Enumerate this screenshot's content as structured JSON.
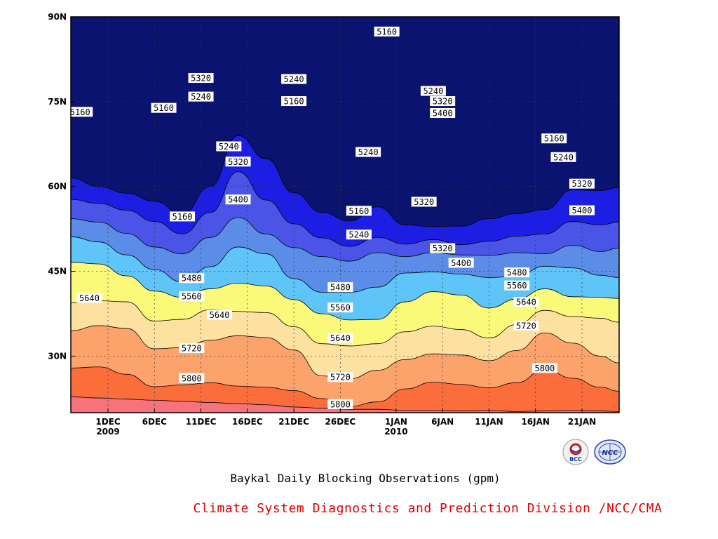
{
  "title": "Baykal Daily Blocking Observations (gpm)",
  "credit": "Climate System Diagnostics and Prediction Division /NCC/CMA",
  "logos": {
    "left_icon": "bcc-logo",
    "left_text": "BCC",
    "right_icon": "ncc-logo",
    "right_text": "NCC"
  },
  "chart_data": {
    "type": "heatmap",
    "xaxis": {
      "ticks": [
        {
          "day": 4,
          "label": "1DEC",
          "sub": "2009"
        },
        {
          "day": 9,
          "label": "6DEC",
          "sub": ""
        },
        {
          "day": 14,
          "label": "11DEC",
          "sub": ""
        },
        {
          "day": 19,
          "label": "16DEC",
          "sub": ""
        },
        {
          "day": 24,
          "label": "21DEC",
          "sub": ""
        },
        {
          "day": 29,
          "label": "26DEC",
          "sub": ""
        },
        {
          "day": 35,
          "label": "1JAN",
          "sub": "2010"
        },
        {
          "day": 40,
          "label": "6JAN",
          "sub": ""
        },
        {
          "day": 45,
          "label": "11JAN",
          "sub": ""
        },
        {
          "day": 50,
          "label": "16JAN",
          "sub": ""
        },
        {
          "day": 55,
          "label": "21JAN",
          "sub": ""
        }
      ],
      "range": [
        0,
        59
      ]
    },
    "yaxis": {
      "ticks": [
        {
          "lat": 30,
          "label": "30N"
        },
        {
          "lat": 45,
          "label": "45N"
        },
        {
          "lat": 60,
          "label": "60N"
        },
        {
          "lat": 75,
          "label": "75N"
        },
        {
          "lat": 90,
          "label": "90N"
        }
      ],
      "range": [
        20,
        90
      ]
    },
    "levels": [
      5160,
      5240,
      5320,
      5400,
      5480,
      5560,
      5640,
      5720,
      5800
    ],
    "colors": [
      "#0b1370",
      "#1c1ee3",
      "#4a55e8",
      "#5a8ce8",
      "#5fc4f7",
      "#fbf97a",
      "#fde1a0",
      "#fca36c",
      "#fb6e3c",
      "#f7727a",
      "#e8142a"
    ],
    "grid": true,
    "contour_labels": [
      {
        "day": 1,
        "lat": 73.2,
        "value": 5160
      },
      {
        "day": 10,
        "lat": 73.9,
        "value": 5160
      },
      {
        "day": 14,
        "lat": 79.2,
        "value": 5320
      },
      {
        "day": 14,
        "lat": 75.9,
        "value": 5240
      },
      {
        "day": 17,
        "lat": 67.1,
        "value": 5240
      },
      {
        "day": 18,
        "lat": 64.4,
        "value": 5320
      },
      {
        "day": 18,
        "lat": 57.7,
        "value": 5400
      },
      {
        "day": 12,
        "lat": 54.7,
        "value": 5160
      },
      {
        "day": 24,
        "lat": 79.0,
        "value": 5240
      },
      {
        "day": 24,
        "lat": 75.1,
        "value": 5160
      },
      {
        "day": 34,
        "lat": 87.4,
        "value": 5160
      },
      {
        "day": 32,
        "lat": 66.1,
        "value": 5240
      },
      {
        "day": 31,
        "lat": 55.7,
        "value": 5160
      },
      {
        "day": 31,
        "lat": 51.5,
        "value": 5240
      },
      {
        "day": 39,
        "lat": 76.9,
        "value": 5240
      },
      {
        "day": 40,
        "lat": 75.1,
        "value": 5320
      },
      {
        "day": 40,
        "lat": 73.0,
        "value": 5400
      },
      {
        "day": 38,
        "lat": 57.3,
        "value": 5320
      },
      {
        "day": 40,
        "lat": 49.1,
        "value": 5320
      },
      {
        "day": 42,
        "lat": 46.5,
        "value": 5400
      },
      {
        "day": 52,
        "lat": 68.5,
        "value": 5160
      },
      {
        "day": 53,
        "lat": 65.2,
        "value": 5240
      },
      {
        "day": 55,
        "lat": 60.5,
        "value": 5320
      },
      {
        "day": 55,
        "lat": 55.8,
        "value": 5400
      },
      {
        "day": 13,
        "lat": 43.8,
        "value": 5480
      },
      {
        "day": 13,
        "lat": 40.6,
        "value": 5560
      },
      {
        "day": 2,
        "lat": 40.3,
        "value": 5640
      },
      {
        "day": 16,
        "lat": 37.3,
        "value": 5640
      },
      {
        "day": 13,
        "lat": 31.4,
        "value": 5720
      },
      {
        "day": 13,
        "lat": 26.1,
        "value": 5800
      },
      {
        "day": 29,
        "lat": 42.2,
        "value": 5480
      },
      {
        "day": 29,
        "lat": 38.6,
        "value": 5560
      },
      {
        "day": 29,
        "lat": 33.2,
        "value": 5640
      },
      {
        "day": 29,
        "lat": 26.3,
        "value": 5720
      },
      {
        "day": 29,
        "lat": 21.5,
        "value": 5800
      },
      {
        "day": 48,
        "lat": 44.8,
        "value": 5480
      },
      {
        "day": 48,
        "lat": 42.5,
        "value": 5560
      },
      {
        "day": 49,
        "lat": 39.6,
        "value": 5640
      },
      {
        "day": 49,
        "lat": 35.4,
        "value": 5720
      },
      {
        "day": 51,
        "lat": 27.9,
        "value": 5800
      }
    ],
    "fields": {
      "sample_days": [
        0,
        3,
        6,
        9,
        12,
        15,
        18,
        21,
        24,
        27,
        30,
        33,
        36,
        39,
        42,
        45,
        48,
        51,
        54,
        57,
        59
      ],
      "boundaries": [
        {
          "level": 5800,
          "lat": [
            22.8,
            22.6,
            22.4,
            22.2,
            22.0,
            21.8,
            21.6,
            21.4,
            21.0,
            20.8,
            20.6,
            20.6,
            20.4,
            20.4,
            20.3,
            20.4,
            20.2,
            20.3,
            20.4,
            20.3,
            20.2
          ]
        },
        {
          "level": 5720,
          "lat": [
            27.9,
            28.1,
            26.8,
            24.6,
            24.9,
            25.3,
            24.7,
            24.5,
            23.9,
            22.5,
            21.1,
            21.9,
            24.2,
            25.4,
            25.0,
            24.4,
            25.3,
            27.7,
            26.1,
            24.5,
            23.8
          ]
        },
        {
          "level": 5640,
          "lat": [
            34.5,
            35.4,
            34.9,
            31.3,
            31.5,
            32.8,
            33.6,
            33.3,
            31.1,
            26.5,
            26.0,
            27.5,
            29.4,
            30.4,
            30.2,
            29.2,
            31.0,
            34.1,
            32.3,
            30.0,
            28.8
          ]
        },
        {
          "level": 5560,
          "lat": [
            39.4,
            39.8,
            39.6,
            36.2,
            36.5,
            38.2,
            37.9,
            37.7,
            35.2,
            32.2,
            31.8,
            32.2,
            34.3,
            35.3,
            34.7,
            33.2,
            35.6,
            38.1,
            37.0,
            36.7,
            36.0
          ]
        },
        {
          "level": 5480,
          "lat": [
            46.6,
            46.3,
            44.2,
            41.5,
            40.4,
            41.9,
            42.9,
            42.4,
            40.0,
            37.5,
            36.4,
            36.5,
            39.6,
            41.4,
            40.8,
            38.5,
            40.1,
            41.9,
            40.5,
            40.4,
            40.2
          ]
        },
        {
          "level": 5400,
          "lat": [
            51.1,
            50.2,
            47.9,
            45.3,
            43.1,
            45.8,
            49.3,
            48.1,
            43.7,
            41.3,
            41.3,
            42.2,
            44.7,
            44.9,
            44.5,
            43.9,
            44.1,
            45.9,
            45.6,
            44.3,
            43.9
          ]
        },
        {
          "level": 5320,
          "lat": [
            54.3,
            53.7,
            51.7,
            49.3,
            48.1,
            51.0,
            54.5,
            51.6,
            49.2,
            47.6,
            46.8,
            48.3,
            47.6,
            48.3,
            47.9,
            47.8,
            48.3,
            48.1,
            49.6,
            48.5,
            49.1
          ]
        },
        {
          "level": 5240,
          "lat": [
            57.7,
            57.0,
            55.8,
            53.8,
            51.6,
            55.4,
            62.6,
            57.6,
            53.4,
            50.9,
            49.4,
            51.0,
            49.8,
            50.6,
            49.7,
            50.3,
            51.2,
            51.6,
            53.8,
            53.2,
            53.7
          ]
        },
        {
          "level": 5160,
          "lat": [
            61.5,
            60.0,
            58.8,
            57.4,
            55.1,
            60.0,
            69.0,
            64.9,
            58.9,
            55.4,
            53.9,
            56.4,
            53.2,
            52.9,
            53.0,
            54.3,
            55.2,
            55.9,
            59.4,
            59.3,
            59.8
          ]
        }
      ]
    }
  }
}
